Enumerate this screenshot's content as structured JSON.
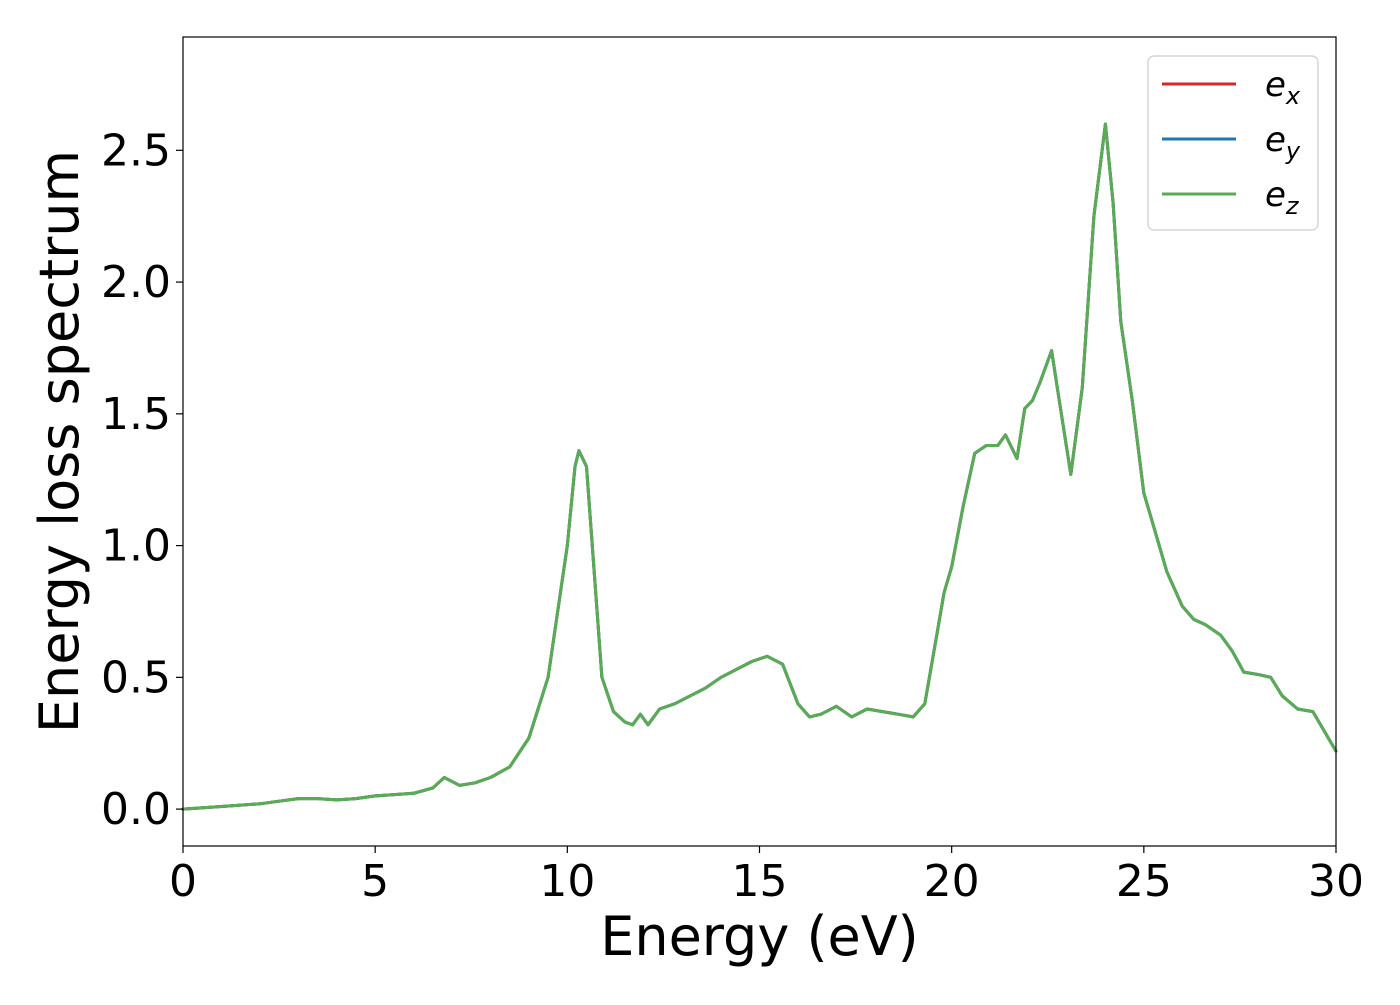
{
  "chart_data": {
    "type": "line",
    "title": "",
    "xlabel": "Energy (eV)",
    "ylabel": "Energy loss spectrum",
    "xlim": [
      0,
      30
    ],
    "ylim": [
      -0.14,
      2.93
    ],
    "xticks": [
      0,
      5,
      10,
      15,
      20,
      25,
      30
    ],
    "xtick_labels": [
      "0",
      "5",
      "10",
      "15",
      "20",
      "25",
      "30"
    ],
    "yticks": [
      0.0,
      0.5,
      1.0,
      1.5,
      2.0,
      2.5
    ],
    "ytick_labels": [
      "0.0",
      "0.5",
      "1.0",
      "1.5",
      "2.0",
      "2.5"
    ],
    "grid": false,
    "legend_position": "top-right",
    "series": [
      {
        "name": "e_x",
        "color": "#d62728",
        "x": [
          0,
          1,
          2,
          2.5,
          3,
          3.5,
          4,
          4.5,
          5,
          5.5,
          6,
          6.5,
          6.8,
          7.2,
          7.6,
          8,
          8.5,
          9,
          9.5,
          9.8,
          10,
          10.2,
          10.3,
          10.5,
          10.7,
          10.9,
          11.2,
          11.5,
          11.7,
          11.9,
          12.1,
          12.4,
          12.8,
          13.2,
          13.6,
          14,
          14.4,
          14.8,
          15.2,
          15.6,
          16,
          16.3,
          16.6,
          17,
          17.4,
          17.8,
          18.2,
          18.6,
          19,
          19.3,
          19.6,
          19.8,
          20,
          20.3,
          20.6,
          20.9,
          21.2,
          21.4,
          21.7,
          21.9,
          22.1,
          22.3,
          22.6,
          22.8,
          23.1,
          23.4,
          23.7,
          24,
          24.2,
          24.4,
          24.7,
          25,
          25.3,
          25.6,
          26,
          26.3,
          26.6,
          27,
          27.3,
          27.6,
          28,
          28.3,
          28.6,
          29,
          29.4,
          29.8,
          30
        ],
        "values": [
          0.0,
          0.01,
          0.02,
          0.03,
          0.04,
          0.04,
          0.035,
          0.04,
          0.05,
          0.055,
          0.06,
          0.08,
          0.12,
          0.09,
          0.1,
          0.12,
          0.16,
          0.27,
          0.5,
          0.8,
          1.0,
          1.3,
          1.36,
          1.3,
          0.9,
          0.5,
          0.37,
          0.33,
          0.32,
          0.36,
          0.32,
          0.38,
          0.4,
          0.43,
          0.46,
          0.5,
          0.53,
          0.56,
          0.58,
          0.55,
          0.4,
          0.35,
          0.36,
          0.39,
          0.35,
          0.38,
          0.37,
          0.36,
          0.35,
          0.4,
          0.65,
          0.82,
          0.92,
          1.15,
          1.35,
          1.38,
          1.38,
          1.42,
          1.33,
          1.52,
          1.55,
          1.62,
          1.74,
          1.55,
          1.27,
          1.6,
          2.25,
          2.6,
          2.3,
          1.85,
          1.55,
          1.2,
          1.05,
          0.9,
          0.77,
          0.72,
          0.7,
          0.66,
          0.6,
          0.52,
          0.51,
          0.5,
          0.43,
          0.38,
          0.37,
          0.27,
          0.22
        ]
      },
      {
        "name": "e_y",
        "color": "#1f77b4",
        "x": [
          0,
          1,
          2,
          2.5,
          3,
          3.5,
          4,
          4.5,
          5,
          5.5,
          6,
          6.5,
          6.8,
          7.2,
          7.6,
          8,
          8.5,
          9,
          9.5,
          9.8,
          10,
          10.2,
          10.3,
          10.5,
          10.7,
          10.9,
          11.2,
          11.5,
          11.7,
          11.9,
          12.1,
          12.4,
          12.8,
          13.2,
          13.6,
          14,
          14.4,
          14.8,
          15.2,
          15.6,
          16,
          16.3,
          16.6,
          17,
          17.4,
          17.8,
          18.2,
          18.6,
          19,
          19.3,
          19.6,
          19.8,
          20,
          20.3,
          20.6,
          20.9,
          21.2,
          21.4,
          21.7,
          21.9,
          22.1,
          22.3,
          22.6,
          22.8,
          23.1,
          23.4,
          23.7,
          24,
          24.2,
          24.4,
          24.7,
          25,
          25.3,
          25.6,
          26,
          26.3,
          26.6,
          27,
          27.3,
          27.6,
          28,
          28.3,
          28.6,
          29,
          29.4,
          29.8,
          30
        ],
        "values": [
          0.0,
          0.01,
          0.02,
          0.03,
          0.04,
          0.04,
          0.035,
          0.04,
          0.05,
          0.055,
          0.06,
          0.08,
          0.12,
          0.09,
          0.1,
          0.12,
          0.16,
          0.27,
          0.5,
          0.8,
          1.0,
          1.3,
          1.36,
          1.3,
          0.9,
          0.5,
          0.37,
          0.33,
          0.32,
          0.36,
          0.32,
          0.38,
          0.4,
          0.43,
          0.46,
          0.5,
          0.53,
          0.56,
          0.58,
          0.55,
          0.4,
          0.35,
          0.36,
          0.39,
          0.35,
          0.38,
          0.37,
          0.36,
          0.35,
          0.4,
          0.65,
          0.82,
          0.92,
          1.15,
          1.35,
          1.38,
          1.38,
          1.42,
          1.33,
          1.52,
          1.55,
          1.62,
          1.74,
          1.55,
          1.27,
          1.6,
          2.25,
          2.6,
          2.3,
          1.85,
          1.55,
          1.2,
          1.05,
          0.9,
          0.77,
          0.72,
          0.7,
          0.66,
          0.6,
          0.52,
          0.51,
          0.5,
          0.43,
          0.38,
          0.37,
          0.27,
          0.22
        ]
      },
      {
        "name": "e_z",
        "color": "#5aab55",
        "x": [
          0,
          1,
          2,
          2.5,
          3,
          3.5,
          4,
          4.5,
          5,
          5.5,
          6,
          6.5,
          6.8,
          7.2,
          7.6,
          8,
          8.5,
          9,
          9.5,
          9.8,
          10,
          10.2,
          10.3,
          10.5,
          10.7,
          10.9,
          11.2,
          11.5,
          11.7,
          11.9,
          12.1,
          12.4,
          12.8,
          13.2,
          13.6,
          14,
          14.4,
          14.8,
          15.2,
          15.6,
          16,
          16.3,
          16.6,
          17,
          17.4,
          17.8,
          18.2,
          18.6,
          19,
          19.3,
          19.6,
          19.8,
          20,
          20.3,
          20.6,
          20.9,
          21.2,
          21.4,
          21.7,
          21.9,
          22.1,
          22.3,
          22.6,
          22.8,
          23.1,
          23.4,
          23.7,
          24,
          24.2,
          24.4,
          24.7,
          25,
          25.3,
          25.6,
          26,
          26.3,
          26.6,
          27,
          27.3,
          27.6,
          28,
          28.3,
          28.6,
          29,
          29.4,
          29.8,
          30
        ],
        "values": [
          0.0,
          0.01,
          0.02,
          0.03,
          0.04,
          0.04,
          0.035,
          0.04,
          0.05,
          0.055,
          0.06,
          0.08,
          0.12,
          0.09,
          0.1,
          0.12,
          0.16,
          0.27,
          0.5,
          0.8,
          1.0,
          1.3,
          1.36,
          1.3,
          0.9,
          0.5,
          0.37,
          0.33,
          0.32,
          0.36,
          0.32,
          0.38,
          0.4,
          0.43,
          0.46,
          0.5,
          0.53,
          0.56,
          0.58,
          0.55,
          0.4,
          0.35,
          0.36,
          0.39,
          0.35,
          0.38,
          0.37,
          0.36,
          0.35,
          0.4,
          0.65,
          0.82,
          0.92,
          1.15,
          1.35,
          1.38,
          1.38,
          1.42,
          1.33,
          1.52,
          1.55,
          1.62,
          1.74,
          1.55,
          1.27,
          1.6,
          2.25,
          2.6,
          2.3,
          1.85,
          1.55,
          1.2,
          1.05,
          0.9,
          0.77,
          0.72,
          0.7,
          0.66,
          0.6,
          0.52,
          0.51,
          0.5,
          0.43,
          0.38,
          0.37,
          0.27,
          0.22
        ]
      }
    ],
    "legend": [
      {
        "base": "e",
        "sub": "x",
        "color": "#d62728"
      },
      {
        "base": "e",
        "sub": "y",
        "color": "#1f77b4"
      },
      {
        "base": "e",
        "sub": "z",
        "color": "#5aab55"
      }
    ]
  }
}
